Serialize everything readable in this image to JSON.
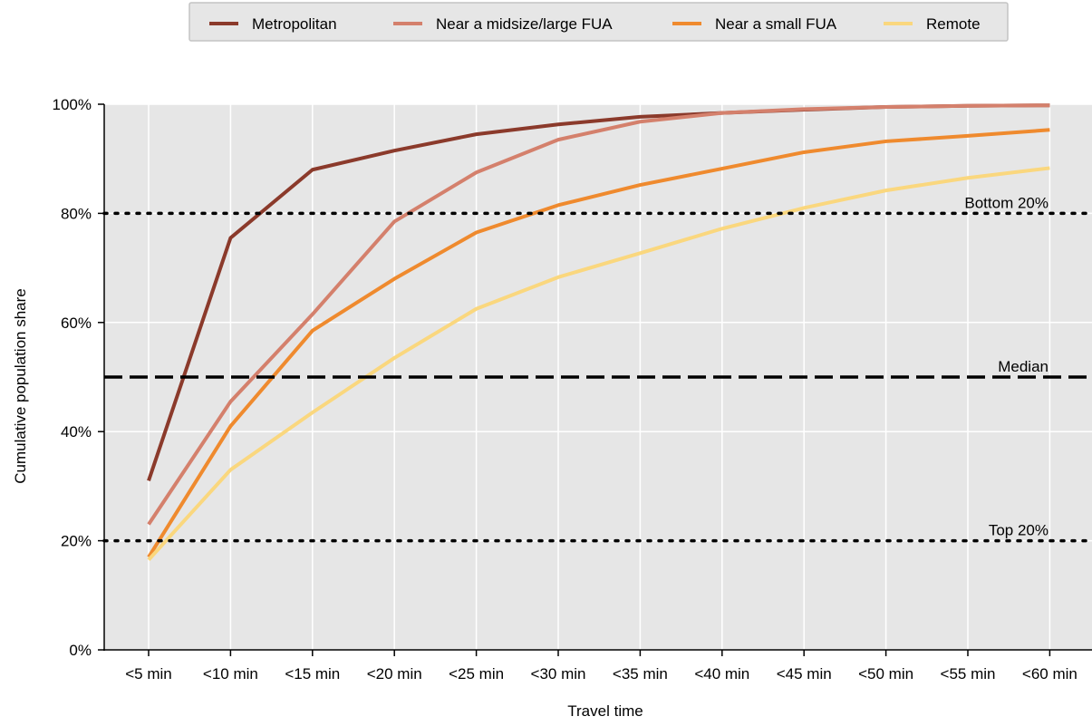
{
  "chart_data": {
    "type": "line",
    "title": "",
    "xlabel": "Travel time",
    "ylabel": "Cumulative population share",
    "categories": [
      "<5 min",
      "<10 min",
      "<15 min",
      "<20 min",
      "<25 min",
      "<30 min",
      "<35 min",
      "<40 min",
      "<45 min",
      "<50 min",
      "<55 min",
      "<60 min"
    ],
    "ylim": [
      0,
      100
    ],
    "yticks": [
      "0%",
      "20%",
      "40%",
      "60%",
      "80%",
      "100%"
    ],
    "ytick_values": [
      0,
      20,
      40,
      60,
      80,
      100
    ],
    "grid": true,
    "legend_position": "top-center",
    "series": [
      {
        "name": "Metropolitan",
        "color": "#8b3a2b",
        "values": [
          31,
          75.5,
          88,
          91.5,
          94.5,
          96.3,
          97.7,
          98.4,
          99,
          99.5,
          99.7,
          99.8
        ]
      },
      {
        "name": "Near a midsize/large FUA",
        "color": "#d4806c",
        "values": [
          23,
          45.5,
          61.5,
          78.5,
          87.5,
          93.5,
          96.8,
          98.4,
          99.1,
          99.5,
          99.7,
          99.8
        ]
      },
      {
        "name": "Near a small FUA",
        "color": "#ef8a2e",
        "values": [
          17,
          41,
          58.5,
          68,
          76.5,
          81.5,
          85.2,
          88.2,
          91.2,
          93.2,
          94.2,
          95.3
        ]
      },
      {
        "name": "Remote",
        "color": "#fad77e",
        "values": [
          16.5,
          33,
          43.5,
          53.5,
          62.5,
          68.3,
          72.7,
          77.2,
          81,
          84.2,
          86.5,
          88.3
        ]
      }
    ],
    "reference_lines": [
      {
        "label": "Bottom 20%",
        "value": 80,
        "style": "dotted"
      },
      {
        "label": "Median",
        "value": 50,
        "style": "dashed"
      },
      {
        "label": "Top 20%",
        "value": 20,
        "style": "dotted"
      }
    ]
  }
}
